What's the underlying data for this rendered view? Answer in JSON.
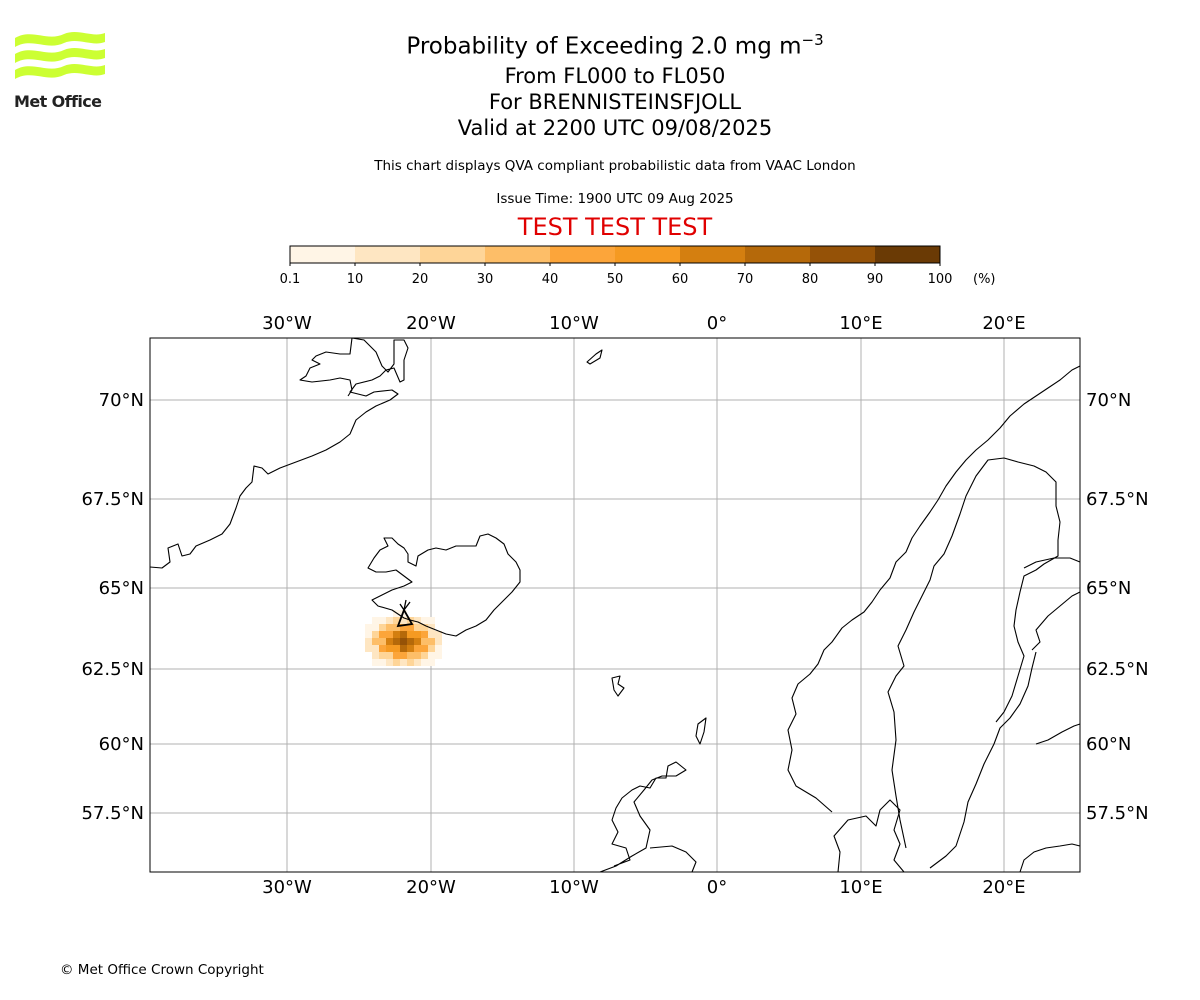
{
  "logo": {
    "text": "Met Office",
    "accent": "#ccff33"
  },
  "header": {
    "title_prefix": "Probability of Exceeding 2.0 mg m",
    "title_exponent": "−3",
    "levels": "From FL000 to FL050",
    "volcano": "For BRENNISTEINSFJOLL",
    "valid": "Valid at 2200 UTC 09/08/2025",
    "description": "This chart displays QVA compliant probabilistic data from VAAC London",
    "issue": "Issue Time: 1900 UTC 09 Aug 2025",
    "banner": "TEST TEST TEST"
  },
  "colorbar": {
    "ticks": [
      "0.1",
      "10",
      "20",
      "30",
      "40",
      "50",
      "60",
      "70",
      "80",
      "90",
      "100"
    ],
    "unit": "(%)",
    "colors": [
      "#fff5e6",
      "#fee6c2",
      "#fed598",
      "#fdbe68",
      "#fca53a",
      "#f59a22",
      "#d47f10",
      "#b5690a",
      "#955207",
      "#6a3a05"
    ]
  },
  "map": {
    "lon_labels": [
      "30°W",
      "20°W",
      "10°W",
      "0°",
      "10°E",
      "20°E"
    ],
    "lat_labels": [
      "70°N",
      "67.5°N",
      "65°N",
      "62.5°N",
      "60°N",
      "57.5°N"
    ],
    "volcano_marker": "triangle-icon",
    "coast_color": "#000000",
    "grid_color": "#b0b0b0"
  },
  "footer": {
    "copyright": "© Met Office Crown Copyright"
  }
}
